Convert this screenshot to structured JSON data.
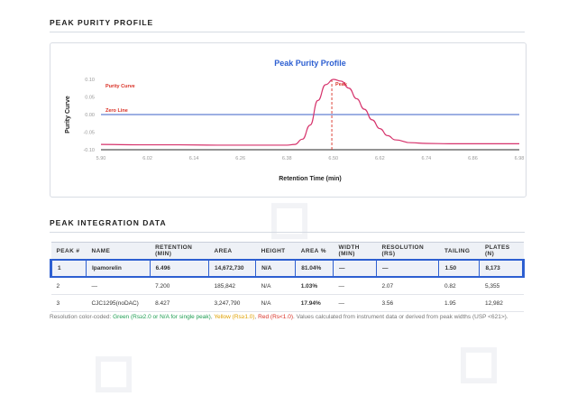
{
  "sections": {
    "chart_title": "PEAK PURITY PROFILE",
    "table_title": "PEAK INTEGRATION DATA"
  },
  "chart_data": {
    "type": "line",
    "title": "Peak Purity Profile",
    "xlabel": "Retention Time (min)",
    "ylabel": "Purity Curve",
    "xlim": [
      5.9,
      6.98
    ],
    "ylim": [
      -0.1,
      0.1
    ],
    "x_ticks": [
      "5.90",
      "6.02",
      "6.14",
      "6.26",
      "6.38",
      "6.50",
      "6.62",
      "6.74",
      "6.86",
      "6.98"
    ],
    "y_ticks": [
      "0.10",
      "0.05",
      "0.00",
      "-0.05",
      "-0.10"
    ],
    "series": [
      {
        "name": "Purity Curve",
        "color": "#d6336c",
        "x": [
          5.9,
          6.0,
          6.1,
          6.2,
          6.3,
          6.38,
          6.4,
          6.42,
          6.44,
          6.46,
          6.48,
          6.5,
          6.52,
          6.54,
          6.56,
          6.58,
          6.6,
          6.62,
          6.64,
          6.66,
          6.7,
          6.74,
          6.8,
          6.9,
          6.98
        ],
        "y": [
          -0.085,
          -0.086,
          -0.086,
          -0.087,
          -0.087,
          -0.087,
          -0.085,
          -0.07,
          -0.03,
          0.04,
          0.085,
          0.1,
          0.095,
          0.075,
          0.045,
          0.015,
          -0.015,
          -0.04,
          -0.06,
          -0.072,
          -0.08,
          -0.082,
          -0.083,
          -0.083,
          -0.083
        ]
      }
    ],
    "annotations": [
      {
        "label": "Zero Line",
        "type": "hline",
        "y": 0.0,
        "color": "#3b5fc7"
      },
      {
        "label": "Peak",
        "type": "vline",
        "x": 6.496,
        "color": "#d93025"
      }
    ]
  },
  "table": {
    "headers": [
      "PEAK #",
      "NAME",
      "RETENTION (MIN)",
      "AREA",
      "HEIGHT",
      "AREA %",
      "WIDTH (MIN)",
      "RESOLUTION (RS)",
      "TAILING",
      "PLATES (N)"
    ],
    "rows": [
      [
        "1",
        "Ipamorelin",
        "6.496",
        "14,672,730",
        "N/A",
        "81.04%",
        "—",
        "—",
        "1.50",
        "8,173"
      ],
      [
        "2",
        "—",
        "7.200",
        "185,842",
        "N/A",
        "1.03%",
        "—",
        "2.07",
        "0.82",
        "5,355"
      ],
      [
        "3",
        "CJC1295(noDAC)",
        "8.427",
        "3,247,790",
        "N/A",
        "17.94%",
        "—",
        "3.56",
        "1.95",
        "12,982"
      ]
    ]
  },
  "note": {
    "prefix": "Resolution color-coded: ",
    "green": "Green (Rs≥2.0 or N/A for single peak)",
    "sep1": ", ",
    "yellow": "Yellow (Rs≥1.0)",
    "sep2": ", ",
    "red": "Red (Rs<1.0)",
    "suffix": ". Values calculated from instrument data or derived from peak widths (USP <621>)."
  },
  "colors": {
    "accent": "#2d5fd1",
    "curve": "#d6336c",
    "zero_line": "#3b5fc7",
    "good": "#1e9e52",
    "warn": "#e0a000",
    "bad": "#d93025"
  }
}
